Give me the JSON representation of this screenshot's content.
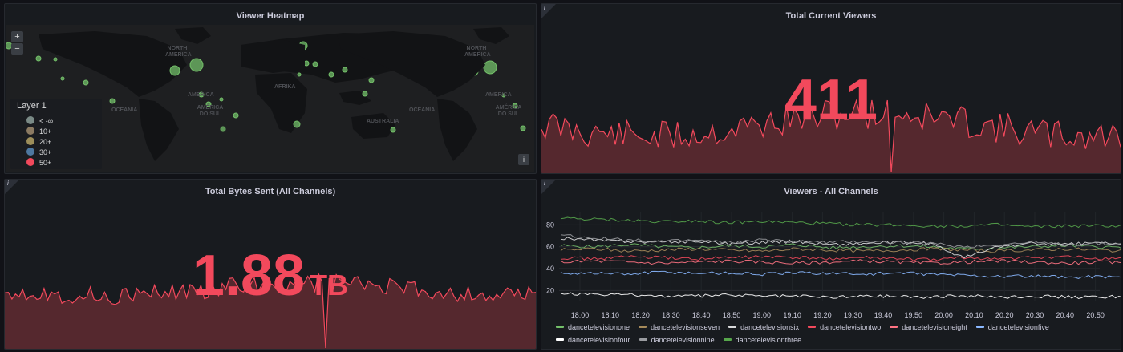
{
  "heatmap": {
    "title": "Viewer Heatmap",
    "zoom_in": "+",
    "zoom_out": "−",
    "info": "i",
    "legend": {
      "title": "Layer 1",
      "items": [
        {
          "label": "< -∞",
          "color": "#7a8a86"
        },
        {
          "label": "10+",
          "color": "#8b7a62"
        },
        {
          "label": "20+",
          "color": "#9d8e5a"
        },
        {
          "label": "30+",
          "color": "#4e78a0"
        },
        {
          "label": "50+",
          "color": "#f2495c"
        }
      ]
    },
    "map_labels": [
      "NORTH AMERICA",
      "AMERICA",
      "OCEANIA",
      "AMÉRICA DO SUL",
      "AFRIKA",
      "AUSTRALIA",
      "NORTH AMERICA",
      "AMERICA",
      "OCEANIA",
      "AMÉRICA DO SUL"
    ],
    "marker_color": "#73bf69"
  },
  "viewers": {
    "title": "Total Current Viewers",
    "value": "411",
    "info": "i",
    "color": "#f2495c"
  },
  "bytes": {
    "title": "Total Bytes Sent (All Channels)",
    "value": "1.88",
    "unit": "TB",
    "info": "i",
    "color": "#f2495c"
  },
  "channels": {
    "title": "Viewers - All Channels",
    "info": "i",
    "chart_data": {
      "type": "line",
      "x": [
        "18:00",
        "18:10",
        "18:20",
        "18:30",
        "18:40",
        "18:50",
        "19:00",
        "19:10",
        "19:20",
        "19:30",
        "19:40",
        "19:50",
        "20:00",
        "20:10",
        "20:20",
        "20:30",
        "20:40",
        "20:50"
      ],
      "yticks": [
        20,
        40,
        60,
        80
      ],
      "ylim": [
        10,
        92
      ],
      "series": [
        {
          "name": "dancetelevisionone",
          "color": "#73bf69",
          "values": [
            61,
            60,
            62,
            60,
            59,
            61,
            60,
            62,
            59,
            60,
            61,
            60,
            58,
            59,
            60,
            61,
            60,
            59
          ]
        },
        {
          "name": "dancetelevisionseven",
          "color": "#a58a5a",
          "values": [
            57,
            58,
            56,
            57,
            58,
            57,
            56,
            58,
            57,
            56,
            57,
            58,
            57,
            56,
            57,
            58,
            57,
            56
          ]
        },
        {
          "name": "dancetelevisionsix",
          "color": "#d8d9da",
          "values": [
            68,
            66,
            65,
            64,
            65,
            63,
            64,
            65,
            62,
            63,
            64,
            63,
            50,
            60,
            63,
            62,
            64,
            61
          ]
        },
        {
          "name": "dancetelevisiontwo",
          "color": "#f2495c",
          "values": [
            50,
            49,
            51,
            50,
            49,
            50,
            51,
            50,
            49,
            50,
            49,
            48,
            50,
            49,
            50,
            51,
            49,
            50
          ]
        },
        {
          "name": "dancetelevisioneight",
          "color": "#ff7383",
          "values": [
            46,
            47,
            46,
            45,
            46,
            47,
            46,
            45,
            46,
            47,
            46,
            45,
            46,
            47,
            46,
            45,
            46,
            45
          ]
        },
        {
          "name": "dancetelevisionfive",
          "color": "#8ab8ff",
          "values": [
            36,
            36,
            35,
            37,
            36,
            36,
            35,
            36,
            36,
            35,
            36,
            35,
            34,
            33,
            33,
            32,
            33,
            32
          ]
        },
        {
          "name": "dancetelevisionfour",
          "color": "#ffffff",
          "values": [
            17,
            16,
            16,
            15,
            15,
            16,
            15,
            15,
            14,
            15,
            15,
            14,
            15,
            14,
            15,
            14,
            14,
            15
          ]
        },
        {
          "name": "dancetelevisionnine",
          "color": "#9a9ca0",
          "values": [
            71,
            68,
            66,
            65,
            66,
            64,
            66,
            65,
            64,
            65,
            64,
            63,
            60,
            62,
            64,
            62,
            63,
            62
          ]
        },
        {
          "name": "dancetelevisionthree",
          "color": "#56a64b",
          "values": [
            86,
            85,
            84,
            83,
            84,
            82,
            83,
            82,
            81,
            80,
            80,
            79,
            79,
            80,
            78,
            79,
            79,
            79
          ]
        }
      ]
    }
  }
}
